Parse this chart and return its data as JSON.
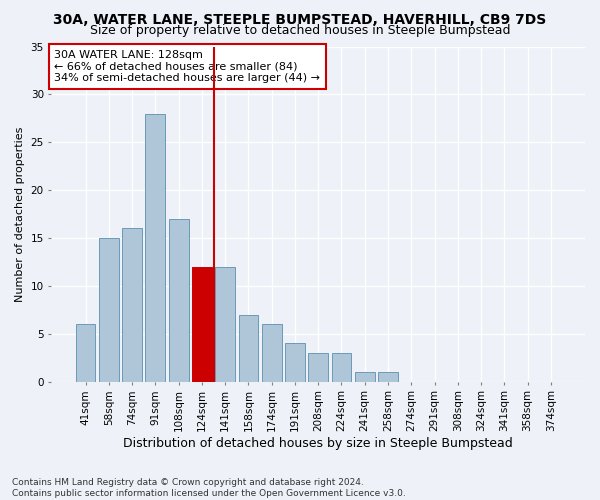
{
  "title": "30A, WATER LANE, STEEPLE BUMPSTEAD, HAVERHILL, CB9 7DS",
  "subtitle": "Size of property relative to detached houses in Steeple Bumpstead",
  "xlabel": "Distribution of detached houses by size in Steeple Bumpstead",
  "ylabel": "Number of detached properties",
  "categories": [
    "41sqm",
    "58sqm",
    "74sqm",
    "91sqm",
    "108sqm",
    "124sqm",
    "141sqm",
    "158sqm",
    "174sqm",
    "191sqm",
    "208sqm",
    "224sqm",
    "241sqm",
    "258sqm",
    "274sqm",
    "291sqm",
    "308sqm",
    "324sqm",
    "341sqm",
    "358sqm",
    "374sqm"
  ],
  "values": [
    6,
    15,
    16,
    28,
    17,
    12,
    12,
    7,
    6,
    4,
    3,
    3,
    1,
    1,
    0,
    0,
    0,
    0,
    0,
    0,
    0
  ],
  "highlight_index": 5,
  "highlight_color": "#cc0000",
  "bar_color": "#aec6d8",
  "bar_edge_color": "#6a9ab8",
  "highlight_bar_color": "#cc0000",
  "background_color": "#eef2f8",
  "annotation_text": "30A WATER LANE: 128sqm\n← 66% of detached houses are smaller (84)\n34% of semi-detached houses are larger (44) →",
  "annotation_box_color": "white",
  "annotation_box_edge": "#cc0000",
  "vline_x": 5.5,
  "ylim": [
    0,
    35
  ],
  "yticks": [
    0,
    5,
    10,
    15,
    20,
    25,
    30,
    35
  ],
  "footnote": "Contains HM Land Registry data © Crown copyright and database right 2024.\nContains public sector information licensed under the Open Government Licence v3.0.",
  "title_fontsize": 10,
  "subtitle_fontsize": 9,
  "xlabel_fontsize": 9,
  "ylabel_fontsize": 8,
  "tick_fontsize": 7.5,
  "annot_fontsize": 8,
  "footnote_fontsize": 6.5
}
